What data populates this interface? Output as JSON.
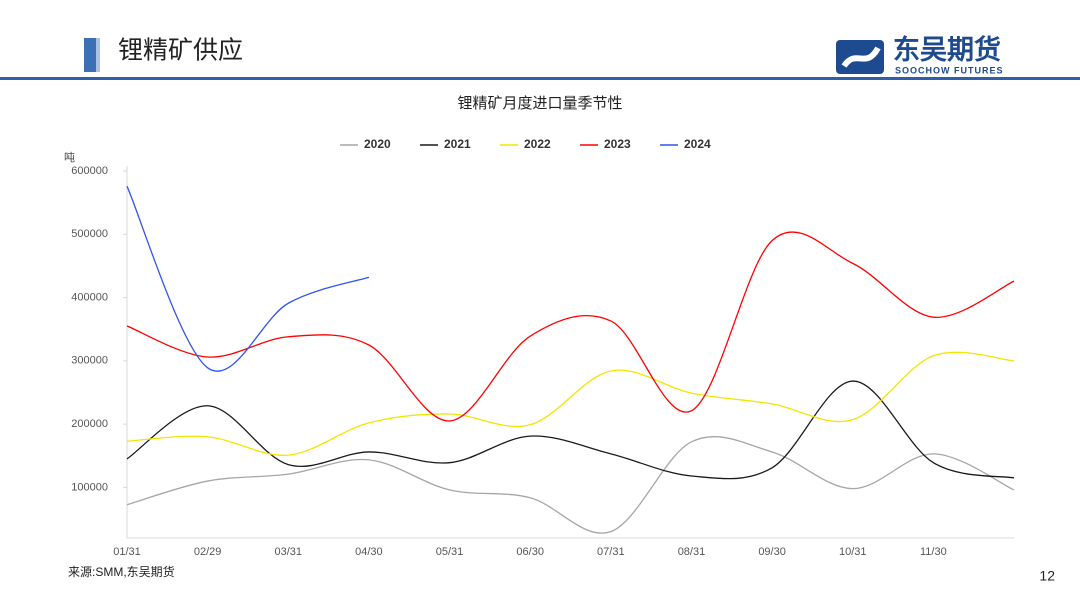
{
  "header": {
    "title": "锂精矿供应",
    "logo_cn": "东吴期货",
    "logo_en": "SOOCHOW FUTURES"
  },
  "footer": {
    "source": "来源:SMM,东吴期货",
    "page": "12"
  },
  "chart_data": {
    "type": "line",
    "title": "锂精矿月度进口量季节性",
    "y_label": "吨",
    "categories": [
      "01/31",
      "02/29",
      "03/31",
      "04/30",
      "05/31",
      "06/30",
      "07/31",
      "08/31",
      "09/30",
      "10/31",
      "11/30",
      null
    ],
    "series": [
      {
        "name": "2020",
        "color": "#a6a6a6",
        "values": [
          72600,
          110000,
          121000,
          143500,
          96000,
          83600,
          30000,
          172000,
          156000,
          98000,
          153000,
          96000
        ]
      },
      {
        "name": "2021",
        "color": "#1a1a1a",
        "values": [
          145000,
          229000,
          136000,
          156000,
          139000,
          181000,
          153000,
          118000,
          131000,
          268000,
          139000,
          115000
        ]
      },
      {
        "name": "2022",
        "color": "#f2e600",
        "values": [
          173000,
          180000,
          151000,
          202000,
          216000,
          199000,
          284000,
          249000,
          232000,
          207000,
          308000,
          300000
        ]
      },
      {
        "name": "2023",
        "color": "#ff0000",
        "values": [
          355000,
          306000,
          338000,
          325000,
          205000,
          339000,
          363000,
          221000,
          490000,
          454000,
          369000,
          426000
        ]
      },
      {
        "name": "2024",
        "color": "#2f55f0",
        "values": [
          576000,
          289000,
          391000,
          432000,
          null,
          null,
          null,
          null,
          null,
          null,
          null,
          null
        ]
      }
    ],
    "ylim": [
      20000,
      600000
    ],
    "yticks": [
      100000,
      200000,
      300000,
      400000,
      500000,
      600000
    ],
    "grid": false,
    "legend": "top"
  }
}
